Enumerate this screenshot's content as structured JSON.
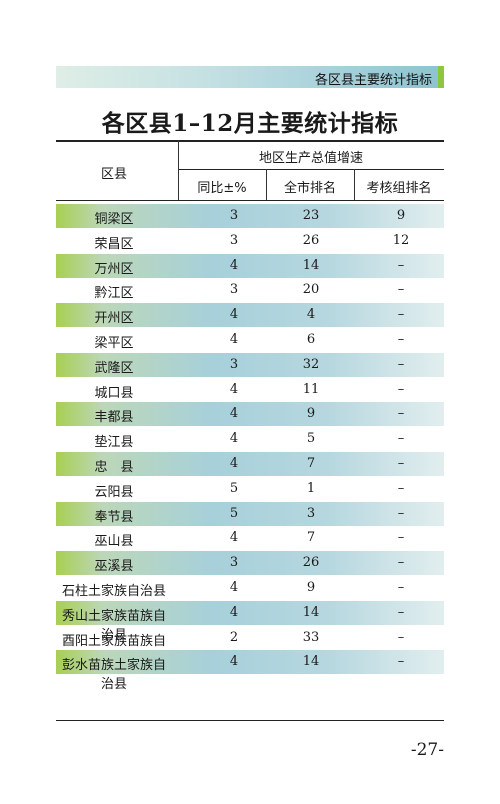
{
  "header": {
    "section_title": "各区县主要统计指标"
  },
  "page_title": "各区县1–12月主要统计指标",
  "table": {
    "col_region": "区县",
    "group_header": "地区生产总值增速",
    "col_yoy": "同比±%",
    "col_city_rank": "全市排名",
    "col_group_rank": "考核组排名",
    "rows": [
      {
        "region": "铜梁区",
        "yoy": "3",
        "city_rank": "23",
        "group_rank": "9"
      },
      {
        "region": "荣昌区",
        "yoy": "3",
        "city_rank": "26",
        "group_rank": "12"
      },
      {
        "region": "万州区",
        "yoy": "4",
        "city_rank": "14",
        "group_rank": "–"
      },
      {
        "region": "黔江区",
        "yoy": "3",
        "city_rank": "20",
        "group_rank": "–"
      },
      {
        "region": "开州区",
        "yoy": "4",
        "city_rank": "4",
        "group_rank": "–"
      },
      {
        "region": "梁平区",
        "yoy": "4",
        "city_rank": "6",
        "group_rank": "–"
      },
      {
        "region": "武隆区",
        "yoy": "3",
        "city_rank": "32",
        "group_rank": "–"
      },
      {
        "region": "城口县",
        "yoy": "4",
        "city_rank": "11",
        "group_rank": "–"
      },
      {
        "region": "丰都县",
        "yoy": "4",
        "city_rank": "9",
        "group_rank": "–"
      },
      {
        "region": "垫江县",
        "yoy": "4",
        "city_rank": "5",
        "group_rank": "–"
      },
      {
        "region": "忠　县",
        "yoy": "4",
        "city_rank": "7",
        "group_rank": "–"
      },
      {
        "region": "云阳县",
        "yoy": "5",
        "city_rank": "1",
        "group_rank": "–"
      },
      {
        "region": "奉节县",
        "yoy": "5",
        "city_rank": "3",
        "group_rank": "–"
      },
      {
        "region": "巫山县",
        "yoy": "4",
        "city_rank": "7",
        "group_rank": "–"
      },
      {
        "region": "巫溪县",
        "yoy": "3",
        "city_rank": "26",
        "group_rank": "–"
      },
      {
        "region": "石柱土家族自治县",
        "yoy": "4",
        "city_rank": "9",
        "group_rank": "–"
      },
      {
        "region": "秀山土家族苗族自治县",
        "yoy": "4",
        "city_rank": "14",
        "group_rank": "–"
      },
      {
        "region": "酉阳土家族苗族自治县",
        "yoy": "2",
        "city_rank": "33",
        "group_rank": "–"
      },
      {
        "region": "彭水苗族土家族自治县",
        "yoy": "4",
        "city_rank": "14",
        "group_rank": "–"
      }
    ]
  },
  "page_number": "-27-"
}
